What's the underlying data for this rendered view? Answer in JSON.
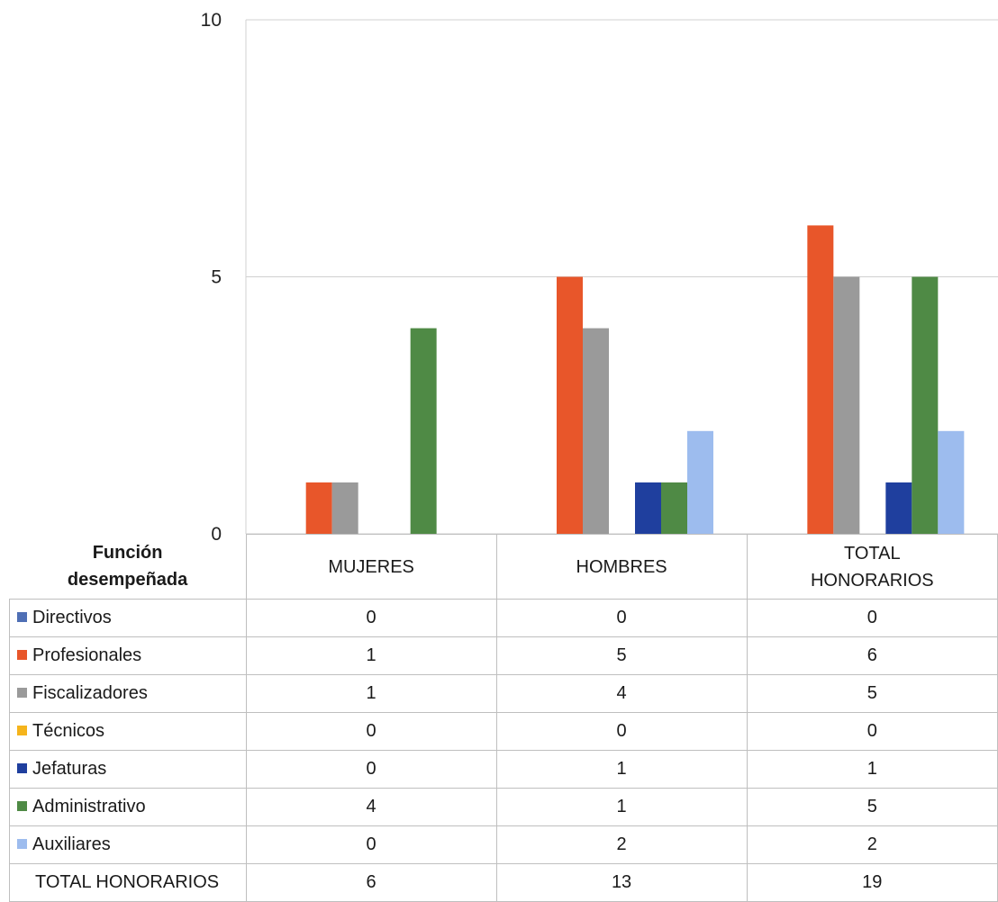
{
  "chart_data": {
    "type": "bar",
    "categories": [
      "MUJERES",
      "HOMBRES",
      "TOTAL HONORARIOS"
    ],
    "category_lines": [
      [
        "MUJERES"
      ],
      [
        "HOMBRES"
      ],
      [
        "TOTAL",
        "HONORARIOS"
      ]
    ],
    "table_header": [
      "Función",
      "desempeñada"
    ],
    "series": [
      {
        "name": "Directivos",
        "color": "#4f6fb5",
        "values": [
          0,
          0,
          0
        ]
      },
      {
        "name": "Profesionales",
        "color": "#e8562a",
        "values": [
          1,
          5,
          6
        ]
      },
      {
        "name": "Fiscalizadores",
        "color": "#9a9a9a",
        "values": [
          1,
          4,
          5
        ]
      },
      {
        "name": "Técnicos",
        "color": "#f5b41c",
        "values": [
          0,
          0,
          0
        ]
      },
      {
        "name": "Jefaturas",
        "color": "#1f3f9e",
        "values": [
          0,
          1,
          1
        ]
      },
      {
        "name": "Administrativo",
        "color": "#4f8a45",
        "values": [
          4,
          1,
          5
        ]
      },
      {
        "name": "Auxiliares",
        "color": "#9dbcee",
        "values": [
          0,
          2,
          2
        ]
      }
    ],
    "totals": {
      "label": "TOTAL HONORARIOS",
      "values": [
        6,
        13,
        19
      ]
    },
    "y_ticks": [
      "0",
      "5",
      "10"
    ],
    "ylim": [
      0,
      10
    ],
    "legend_placement": "data table"
  }
}
